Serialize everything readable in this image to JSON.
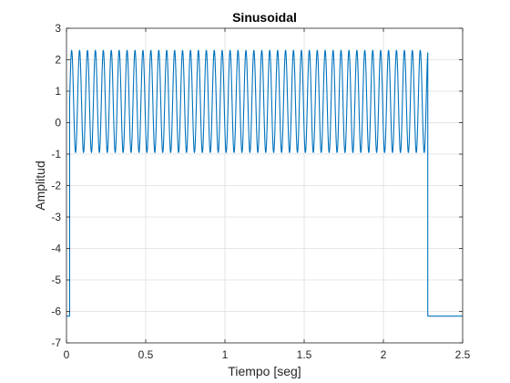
{
  "chart_data": {
    "type": "line",
    "title": "Sinusoidal",
    "xlabel": "Tiempo [seg]",
    "ylabel": "Amplitud",
    "xlim": [
      0,
      2.5
    ],
    "ylim": [
      -7,
      3
    ],
    "xticks": [
      "0",
      "0.5",
      "1",
      "1.5",
      "2",
      "2.5"
    ],
    "yticks": [
      "3",
      "2",
      "1",
      "0",
      "-1",
      "-2",
      "-3",
      "-4",
      "-5",
      "-6",
      "-7"
    ],
    "grid": true,
    "series": [
      {
        "color": "#0072BD",
        "description": "Sinusoid between -6.15 baseline segments: flat at -6.15 from t=0 to ~0.02, oscillation between about -0.95 and 2.3 (~20 Hz) from ~0.02 to ~2.28, then flat at -6.15 from ~2.28 to 2.5",
        "baseline": -6.15,
        "osc_start": 0.02,
        "osc_end": 2.28,
        "osc_min": -0.95,
        "osc_max": 2.3,
        "frequency_hz": 20
      }
    ]
  }
}
